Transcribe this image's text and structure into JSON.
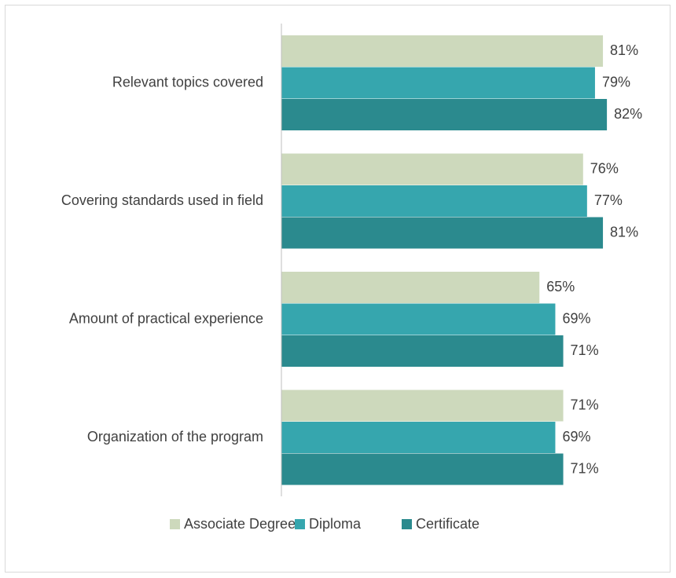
{
  "chart_data": {
    "type": "bar",
    "orientation": "horizontal",
    "categories": [
      "Relevant topics covered",
      "Covering standards used in field",
      "Amount of practical experience",
      "Organization of the program"
    ],
    "series": [
      {
        "name": "Associate Degree",
        "color": "#cdd9bc",
        "values": [
          81,
          76,
          65,
          71
        ],
        "value_labels": [
          "81%",
          "76%",
          "65%",
          "71%"
        ]
      },
      {
        "name": "Diploma",
        "color": "#36a6ae",
        "values": [
          79,
          77,
          69,
          69
        ],
        "value_labels": [
          "79%",
          "77%",
          "69%",
          "69%"
        ]
      },
      {
        "name": "Certificate",
        "color": "#2b8a8e",
        "values": [
          82,
          81,
          71,
          71
        ],
        "value_labels": [
          "82%",
          "81%",
          "71%",
          "71%"
        ]
      }
    ],
    "legend": "bottom"
  }
}
